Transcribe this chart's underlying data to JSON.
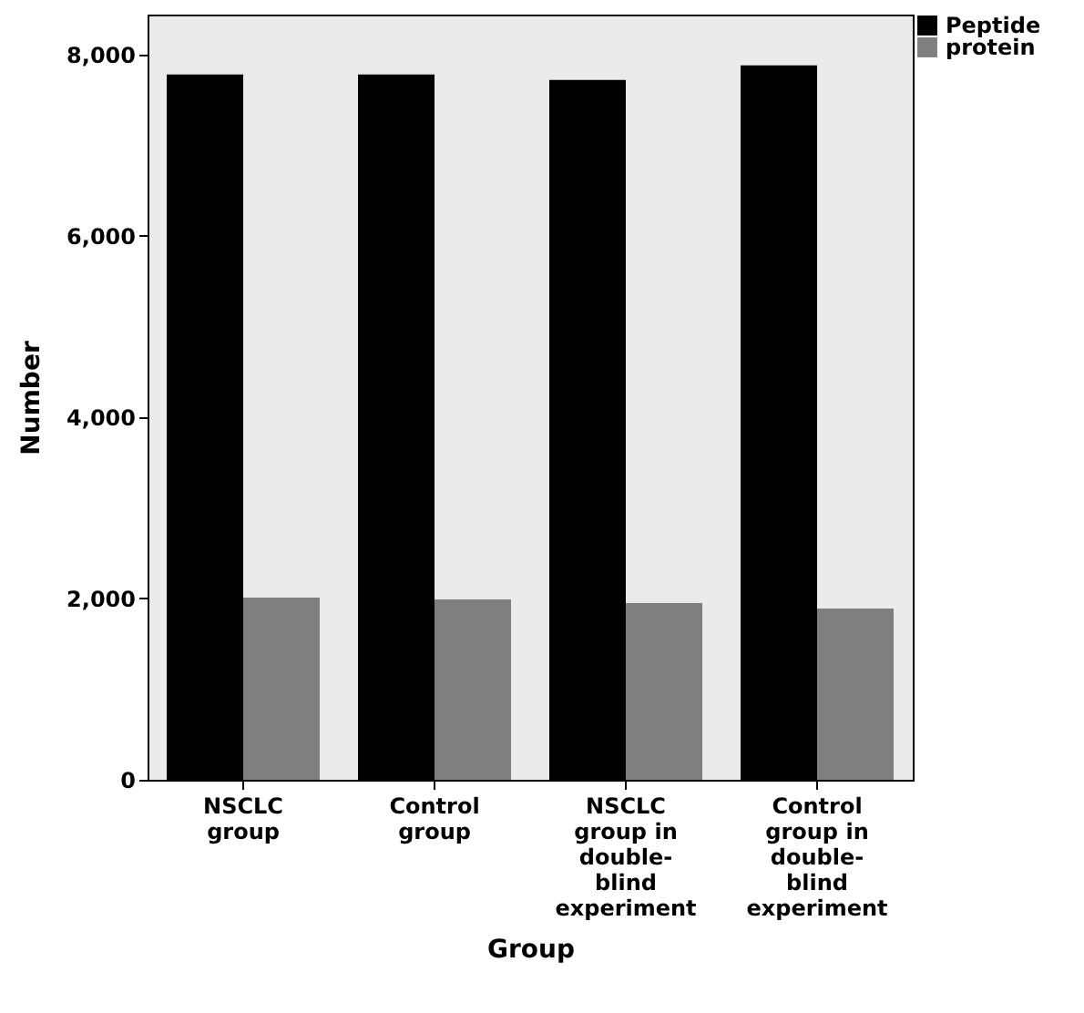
{
  "chart_data": {
    "type": "bar",
    "xlabel": "Group",
    "ylabel": "Number",
    "categories": [
      "NSCLC group",
      "Control group",
      "NSCLC group in double-blind experiment",
      "Control group in double-blind experiment"
    ],
    "series": [
      {
        "name": "Peptide",
        "color": "#000000",
        "values": [
          7780,
          7780,
          7720,
          7880
        ]
      },
      {
        "name": "protein",
        "color": "#7f7f7f",
        "values": [
          2010,
          1990,
          1950,
          1890
        ]
      }
    ],
    "ylim": [
      0,
      8440
    ],
    "yticks": [
      0,
      {
        "value": 2000,
        "label": "2,000"
      },
      {
        "value": 4000,
        "label": "4,000"
      },
      {
        "value": 6000,
        "label": "6,000"
      },
      {
        "value": 8000,
        "label": "8,000"
      }
    ],
    "grid": false,
    "legend": "top right"
  }
}
